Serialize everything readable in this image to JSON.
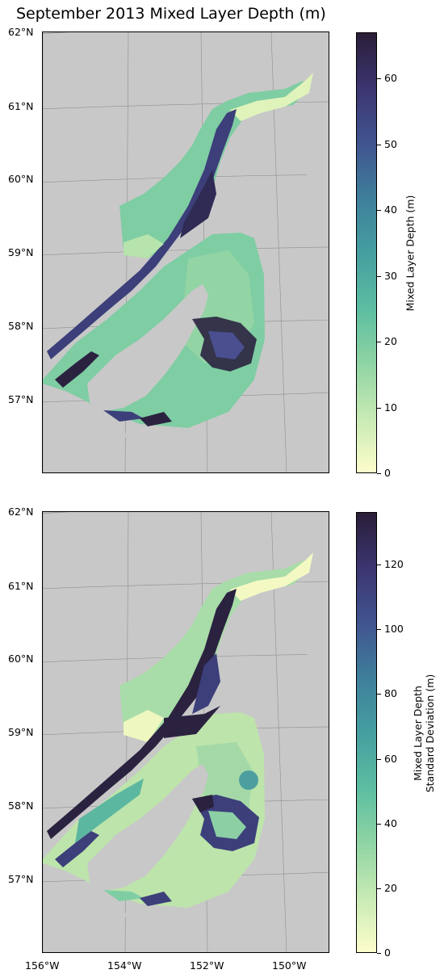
{
  "title": "September 2013 Mixed Layer Depth (m)",
  "lat_labels": [
    "62°N",
    "61°N",
    "60°N",
    "59°N",
    "58°N",
    "57°N"
  ],
  "lon_labels": [
    "156°W",
    "154°W",
    "152°W",
    "150°W"
  ],
  "colorbar_top": {
    "label": "Mixed Layer Depth (m)",
    "ticks": [
      "0",
      "10",
      "20",
      "30",
      "40",
      "50",
      "60"
    ],
    "range": [
      0,
      67
    ]
  },
  "colorbar_bottom": {
    "label_line1": "Mixed Layer Depth",
    "label_line2": "Standard Deviation (m)",
    "ticks": [
      "0",
      "20",
      "40",
      "60",
      "80",
      "100",
      "120"
    ],
    "range": [
      0,
      136
    ]
  },
  "colors": {
    "land": "#c8c8c8",
    "colormap": [
      "#fdfdcc",
      "#8ed4a3",
      "#459ea0",
      "#40548f",
      "#2a1e38"
    ]
  }
}
